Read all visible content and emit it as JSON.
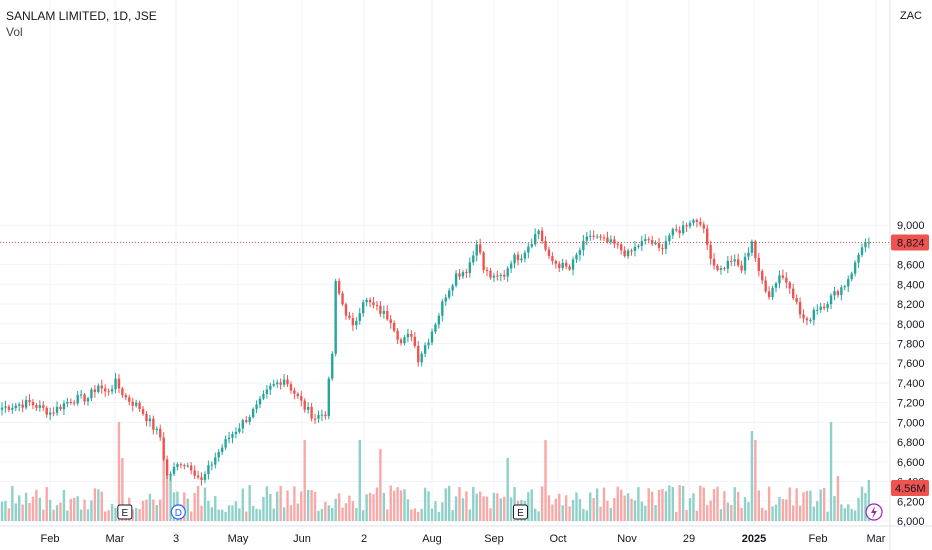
{
  "header": {
    "ticker": "SANLAM LIMITED, 1D, JSE",
    "volume_label": "Vol",
    "currency": "ZAC"
  },
  "colors": {
    "up": "#26a69a",
    "down": "#ef5350",
    "up_vol": "#8fd0c9",
    "down_vol": "#f7a9a7",
    "grid": "#f0f3fa",
    "last_price_line": "#ef5350",
    "dividend_badge": "#2962ff",
    "alert_badge": "#9c27b0"
  },
  "markers": {
    "earnings": "E",
    "dividend": "D"
  },
  "chart_data": {
    "type": "candlestick",
    "title": "SANLAM LIMITED, 1D, JSE",
    "currency": "ZAC",
    "y_ticks": [
      "6,000",
      "6,200",
      "6,400",
      "6,600",
      "6,800",
      "7,000",
      "7,200",
      "7,400",
      "7,600",
      "7,800",
      "8,000",
      "8,200",
      "8,400",
      "8,600",
      "8,800",
      "9,000"
    ],
    "ylim": [
      6000,
      9200
    ],
    "x_ticks": [
      {
        "label": "Feb",
        "bold": false
      },
      {
        "label": "Mar",
        "bold": false
      },
      {
        "label": "3",
        "bold": false
      },
      {
        "label": "May",
        "bold": false
      },
      {
        "label": "Jun",
        "bold": false
      },
      {
        "label": "2",
        "bold": false
      },
      {
        "label": "Aug",
        "bold": false
      },
      {
        "label": "Sep",
        "bold": false
      },
      {
        "label": "Oct",
        "bold": false
      },
      {
        "label": "Nov",
        "bold": false
      },
      {
        "label": "29",
        "bold": false
      },
      {
        "label": "2025",
        "bold": true
      },
      {
        "label": "Feb",
        "bold": false
      },
      {
        "label": "Mar",
        "bold": false
      }
    ],
    "last_price": 8824,
    "last_price_label": "8,824",
    "last_volume_label": "4.56M",
    "anchors": [
      [
        0,
        7150
      ],
      [
        8,
        7200
      ],
      [
        14,
        7100
      ],
      [
        20,
        7230
      ],
      [
        25,
        7250
      ],
      [
        28,
        7380
      ],
      [
        30,
        7300
      ],
      [
        33,
        7400
      ],
      [
        36,
        7250
      ],
      [
        40,
        7150
      ],
      [
        43,
        7000
      ],
      [
        46,
        6850
      ],
      [
        48,
        6450
      ],
      [
        52,
        6600
      ],
      [
        55,
        6550
      ],
      [
        58,
        6400
      ],
      [
        62,
        6650
      ],
      [
        66,
        6850
      ],
      [
        70,
        7000
      ],
      [
        74,
        7150
      ],
      [
        78,
        7350
      ],
      [
        82,
        7450
      ],
      [
        85,
        7300
      ],
      [
        88,
        7150
      ],
      [
        91,
        7050
      ],
      [
        94,
        7100
      ],
      [
        96,
        7700
      ],
      [
        97,
        8400
      ],
      [
        99,
        8200
      ],
      [
        102,
        7950
      ],
      [
        105,
        8250
      ],
      [
        109,
        8150
      ],
      [
        113,
        8050
      ],
      [
        116,
        7800
      ],
      [
        119,
        7900
      ],
      [
        121,
        7650
      ],
      [
        124,
        7850
      ],
      [
        127,
        8100
      ],
      [
        129,
        8300
      ],
      [
        132,
        8500
      ],
      [
        135,
        8550
      ],
      [
        137,
        8700
      ],
      [
        138,
        8850
      ],
      [
        140,
        8550
      ],
      [
        143,
        8450
      ],
      [
        146,
        8500
      ],
      [
        148,
        8650
      ],
      [
        151,
        8700
      ],
      [
        154,
        8850
      ],
      [
        156,
        8950
      ],
      [
        159,
        8650
      ],
      [
        162,
        8600
      ],
      [
        165,
        8550
      ],
      [
        168,
        8750
      ],
      [
        171,
        8900
      ],
      [
        174,
        8850
      ],
      [
        178,
        8800
      ],
      [
        182,
        8700
      ],
      [
        185,
        8800
      ],
      [
        188,
        8850
      ],
      [
        191,
        8750
      ],
      [
        194,
        8900
      ],
      [
        197,
        8950
      ],
      [
        200,
        9050
      ],
      [
        203,
        9050
      ],
      [
        205,
        8800
      ],
      [
        207,
        8600
      ],
      [
        209,
        8550
      ],
      [
        212,
        8650
      ],
      [
        215,
        8550
      ],
      [
        218,
        8850
      ],
      [
        220,
        8500
      ],
      [
        223,
        8300
      ],
      [
        226,
        8500
      ],
      [
        229,
        8400
      ],
      [
        232,
        8100
      ],
      [
        234,
        8000
      ],
      [
        236,
        8150
      ],
      [
        239,
        8200
      ],
      [
        242,
        8300
      ],
      [
        245,
        8400
      ],
      [
        248,
        8600
      ],
      [
        250,
        8800
      ],
      [
        252,
        8824
      ]
    ],
    "volume_millions": {
      "baseline": 2.5,
      "spikes": [
        [
          34,
          11
        ],
        [
          35,
          7
        ],
        [
          47,
          9
        ],
        [
          48,
          5
        ],
        [
          49,
          5
        ],
        [
          88,
          9
        ],
        [
          104,
          9
        ],
        [
          110,
          8
        ],
        [
          147,
          7
        ],
        [
          158,
          9
        ],
        [
          197,
          4
        ],
        [
          218,
          10
        ],
        [
          219,
          9
        ],
        [
          241,
          11
        ],
        [
          243,
          5
        ],
        [
          252,
          4.56
        ]
      ]
    },
    "earnings_marker_days": [
      36,
      151
    ],
    "dividend_marker_days": [
      53
    ]
  }
}
